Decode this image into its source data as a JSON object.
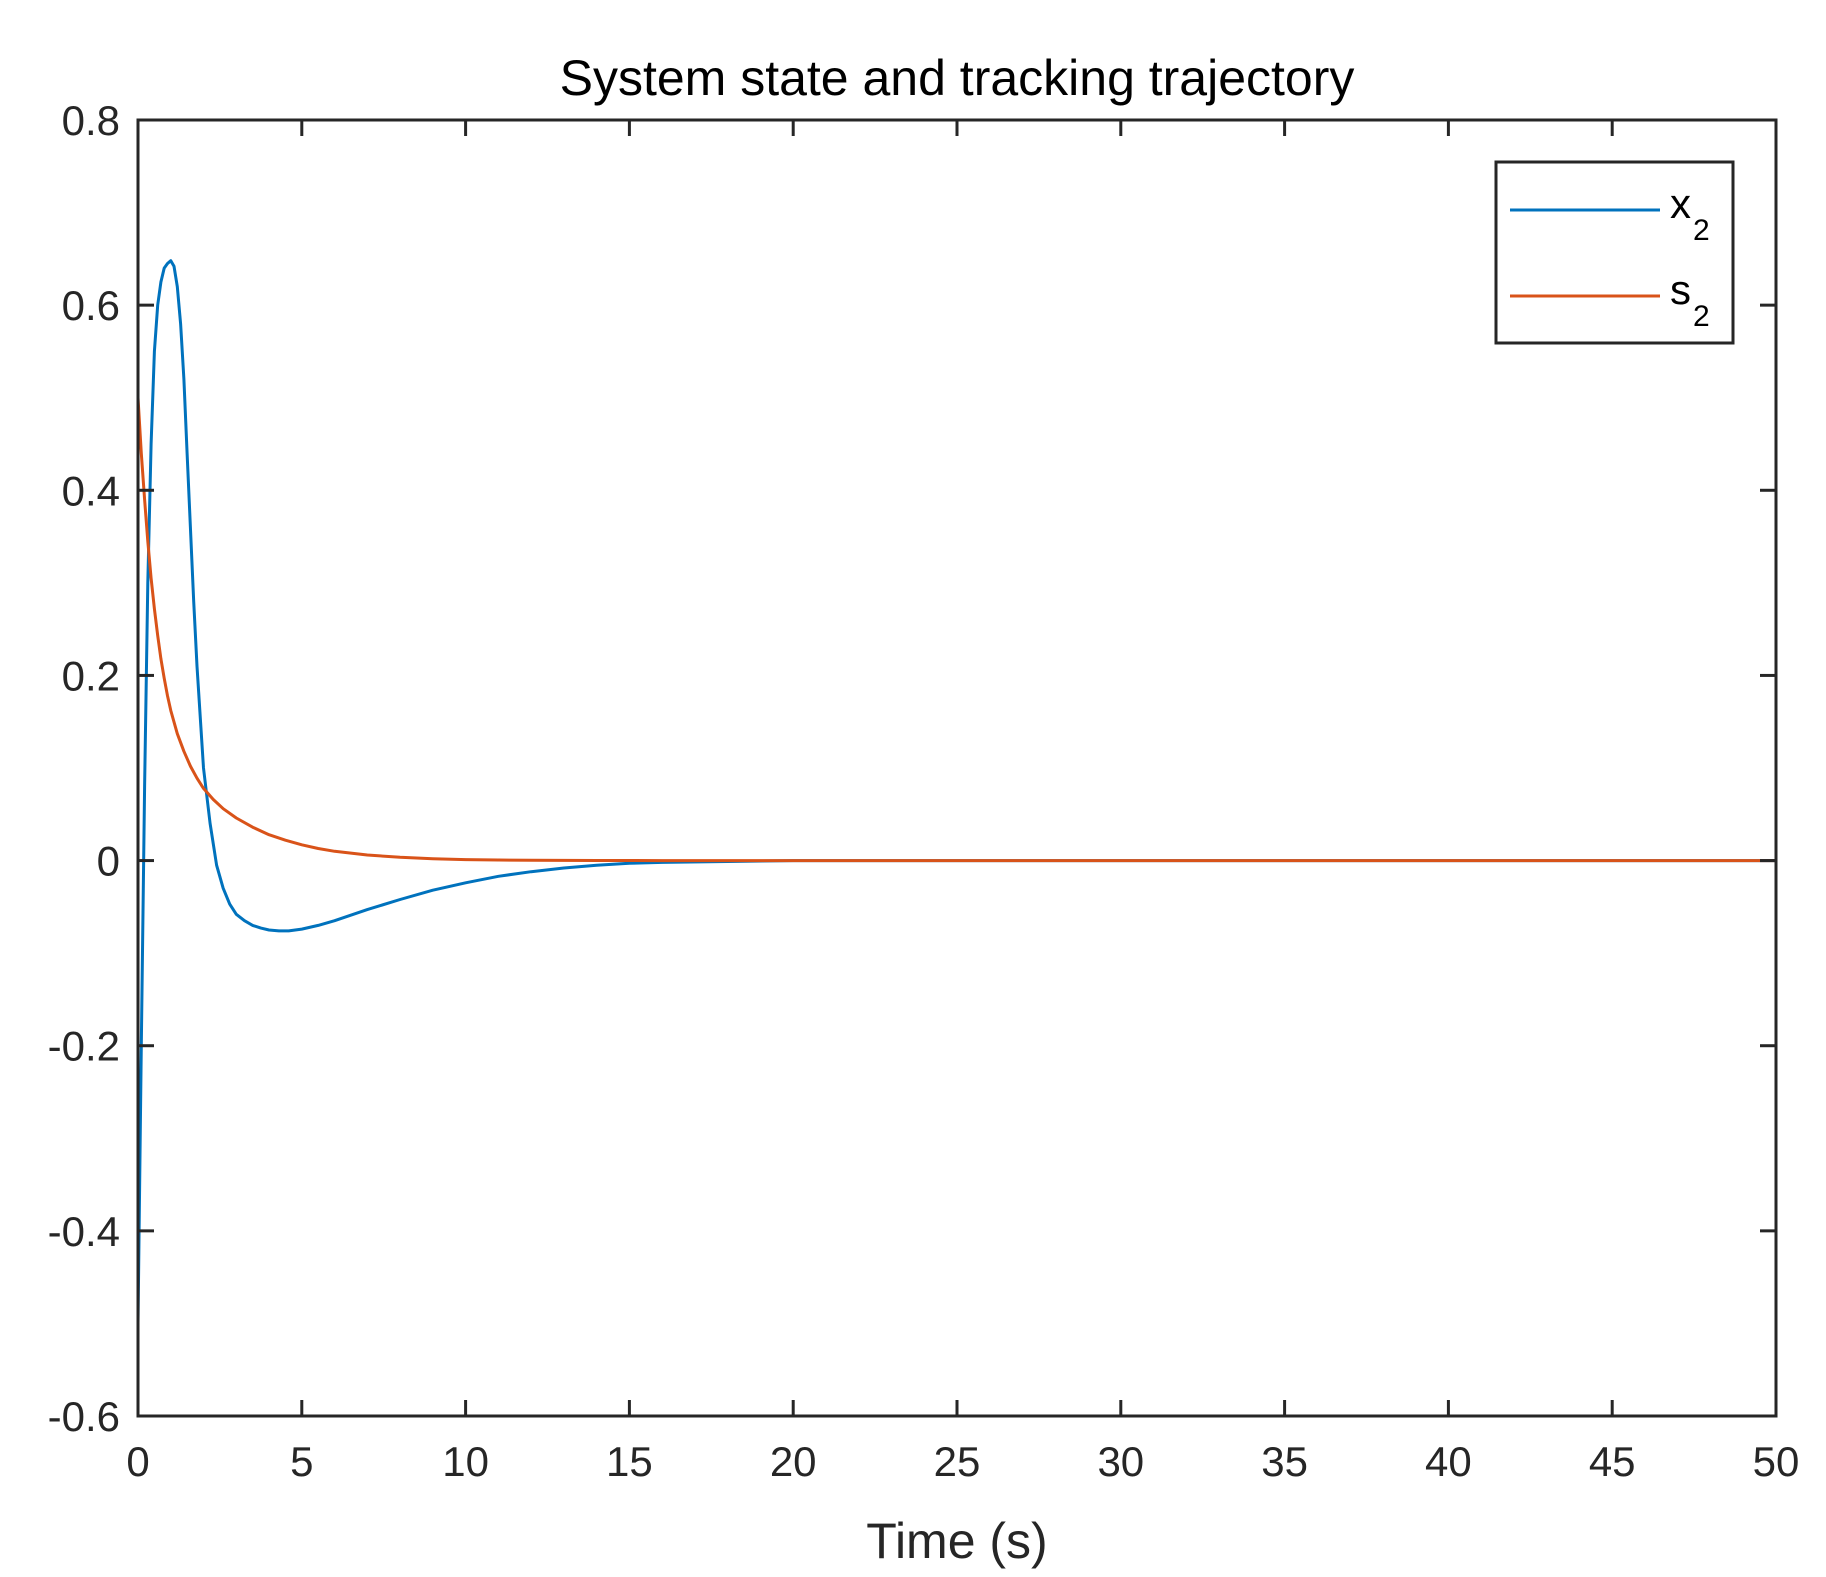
{
  "chart_data": {
    "type": "line",
    "title": "System state and tracking trajectory",
    "xlabel": "Time (s)",
    "ylabel": "",
    "xlim": [
      0,
      50
    ],
    "ylim": [
      -0.6,
      0.8
    ],
    "xticks": [
      0,
      5,
      10,
      15,
      20,
      25,
      30,
      35,
      40,
      45,
      50
    ],
    "xtick_labels": [
      "0",
      "5",
      "10",
      "15",
      "20",
      "25",
      "30",
      "35",
      "40",
      "45",
      "50"
    ],
    "yticks": [
      -0.6,
      -0.4,
      -0.2,
      0,
      0.2,
      0.4,
      0.6,
      0.8
    ],
    "ytick_labels": [
      "-0.6",
      "-0.4",
      "-0.2",
      "0",
      "0.2",
      "0.4",
      "0.6",
      "0.8"
    ],
    "grid": false,
    "legend_position": "top-right",
    "series": [
      {
        "name": "x",
        "name_subscript": "2",
        "color": "#0072BD",
        "x": [
          0,
          0.1,
          0.2,
          0.3,
          0.4,
          0.5,
          0.6,
          0.7,
          0.8,
          0.9,
          1.0,
          1.1,
          1.2,
          1.3,
          1.4,
          1.5,
          1.6,
          1.7,
          1.8,
          2.0,
          2.2,
          2.4,
          2.6,
          2.8,
          3.0,
          3.25,
          3.5,
          3.75,
          4.0,
          4.3,
          4.6,
          5.0,
          5.5,
          6.0,
          7.0,
          8.0,
          9.0,
          10.0,
          11.0,
          12.0,
          13.0,
          14.0,
          15.0,
          16.0,
          18.0,
          20.0,
          25.0,
          30.0,
          35.0,
          40.0,
          45.0,
          50.0
        ],
        "y": [
          -0.5,
          -0.2,
          0.08,
          0.3,
          0.45,
          0.55,
          0.6,
          0.625,
          0.64,
          0.645,
          0.648,
          0.642,
          0.62,
          0.58,
          0.52,
          0.44,
          0.36,
          0.28,
          0.21,
          0.1,
          0.04,
          -0.005,
          -0.03,
          -0.047,
          -0.058,
          -0.065,
          -0.07,
          -0.073,
          -0.075,
          -0.076,
          -0.076,
          -0.074,
          -0.07,
          -0.065,
          -0.053,
          -0.042,
          -0.032,
          -0.024,
          -0.017,
          -0.012,
          -0.008,
          -0.005,
          -0.003,
          -0.002,
          -0.001,
          0,
          0,
          0,
          0,
          0,
          0,
          0
        ]
      },
      {
        "name": "s",
        "name_subscript": "2",
        "color": "#D95319",
        "x": [
          0,
          0.1,
          0.2,
          0.3,
          0.4,
          0.5,
          0.6,
          0.7,
          0.8,
          0.9,
          1.0,
          1.2,
          1.4,
          1.6,
          1.8,
          2.0,
          2.3,
          2.6,
          3.0,
          3.5,
          4.0,
          4.5,
          5.0,
          5.5,
          6.0,
          7.0,
          8.0,
          9.0,
          10.0,
          11.0,
          12.0,
          14.0,
          16.0,
          18.0,
          20.0,
          25.0,
          30.0,
          35.0,
          40.0,
          45.0,
          50.0
        ],
        "y": [
          0.5,
          0.44,
          0.39,
          0.345,
          0.305,
          0.272,
          0.243,
          0.218,
          0.197,
          0.178,
          0.162,
          0.137,
          0.118,
          0.102,
          0.089,
          0.078,
          0.066,
          0.056,
          0.046,
          0.036,
          0.028,
          0.022,
          0.017,
          0.013,
          0.01,
          0.006,
          0.0035,
          0.002,
          0.001,
          0.0006,
          0.0003,
          0.0001,
          0,
          0,
          0,
          0,
          0,
          0,
          0,
          0,
          0
        ]
      }
    ]
  }
}
